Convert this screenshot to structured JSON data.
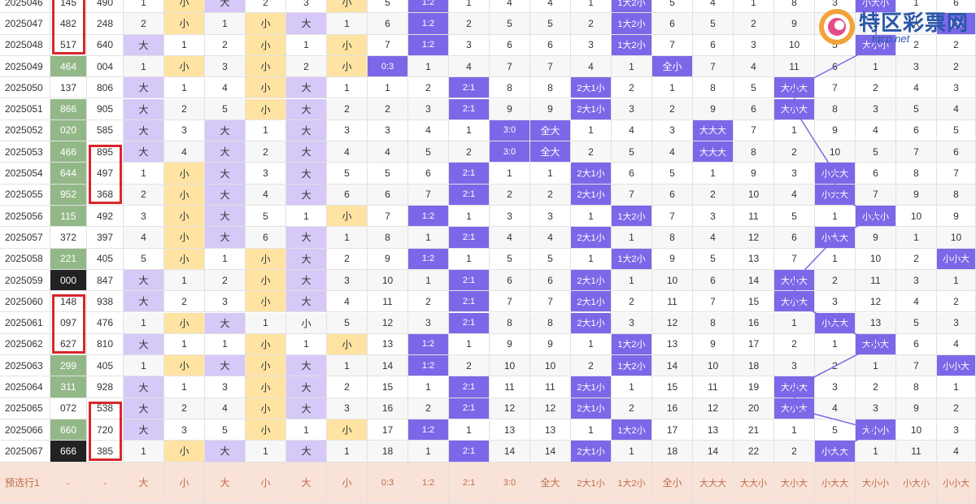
{
  "logo": {
    "title": "特区彩票网",
    "url": "tqcp.net"
  },
  "footer": {
    "label": "预选行1",
    "values": [
      "-",
      "-",
      "大",
      "小",
      "大",
      "小",
      "大",
      "小",
      "0:3",
      "1:2",
      "2:1",
      "3:0",
      "全大",
      "2大1小",
      "1大2小",
      "全小",
      "大大大",
      "大大小",
      "大小大",
      "小大大",
      "大小小",
      "小大小",
      "小小大"
    ]
  },
  "colors": {
    "green": "#93b888",
    "purple": "#7b68e8",
    "lavender": "#d6c8f7",
    "yellow": "#ffe3a3",
    "red": "#d9262b",
    "black": "#222222",
    "footer": "#f9e3d8"
  },
  "rows": [
    {
      "issue": "2025046",
      "a": "145",
      "b": "490",
      "c": [
        "1",
        "小",
        "大",
        "2",
        "3",
        "小",
        "5",
        "1:2",
        "1",
        "4",
        "4",
        "1",
        "1大2小",
        "5",
        "4",
        "1",
        "8",
        "3",
        "小大小",
        "1"
      ]
    },
    {
      "issue": "2025047",
      "a": "482",
      "b": "248",
      "c": [
        "2",
        "小",
        "1",
        "小",
        "大",
        "1",
        "6",
        "1:2",
        "2",
        "5",
        "5",
        "2",
        "1大2小",
        "6",
        "5",
        "2",
        "9",
        "4",
        "1",
        "大"
      ]
    },
    {
      "issue": "2025048",
      "a": "517",
      "b": "640",
      "c": [
        "大",
        "1",
        "2",
        "小",
        "1",
        "小",
        "7",
        "1:2",
        "3",
        "6",
        "6",
        "3",
        "1大2小",
        "7",
        "6",
        "3",
        "10",
        "5",
        "大小小",
        "2"
      ]
    },
    {
      "issue": "2025049",
      "a": "464",
      "b": "004",
      "c": [
        "1",
        "小",
        "3",
        "小",
        "2",
        "小",
        "0:3",
        "1",
        "4",
        "7",
        "7",
        "4",
        "1",
        "全小",
        "7",
        "4",
        "11",
        "6",
        "1",
        "3"
      ]
    },
    {
      "issue": "2025050",
      "a": "137",
      "b": "806",
      "c": [
        "大",
        "1",
        "4",
        "小",
        "大",
        "1",
        "1",
        "2",
        "2:1",
        "8",
        "8",
        "2大1小",
        "2",
        "1",
        "8",
        "5",
        "大小大",
        "7",
        "2",
        "4"
      ]
    },
    {
      "issue": "2025051",
      "a": "866",
      "b": "905",
      "c": [
        "大",
        "2",
        "5",
        "小",
        "大",
        "2",
        "2",
        "3",
        "2:1",
        "9",
        "9",
        "2大1小",
        "3",
        "2",
        "9",
        "6",
        "大小大",
        "8",
        "3",
        "5"
      ]
    },
    {
      "issue": "2025052",
      "a": "020",
      "b": "585",
      "c": [
        "大",
        "3",
        "大",
        "1",
        "大",
        "3",
        "3",
        "4",
        "1",
        "3:0",
        "全大",
        "1",
        "4",
        "3",
        "大大大",
        "7",
        "1",
        "9",
        "4",
        "6"
      ]
    },
    {
      "issue": "2025053",
      "a": "466",
      "b": "895",
      "c": [
        "大",
        "4",
        "大",
        "2",
        "大",
        "4",
        "4",
        "5",
        "2",
        "3:0",
        "全大",
        "2",
        "5",
        "4",
        "大大大",
        "8",
        "2",
        "10",
        "5",
        "7"
      ]
    },
    {
      "issue": "2025054",
      "a": "644",
      "b": "497",
      "c": [
        "1",
        "小",
        "大",
        "3",
        "大",
        "5",
        "5",
        "6",
        "2:1",
        "1",
        "1",
        "2大1小",
        "6",
        "5",
        "1",
        "9",
        "3",
        "小大大",
        "6",
        "8"
      ]
    },
    {
      "issue": "2025055",
      "a": "952",
      "b": "368",
      "c": [
        "2",
        "小",
        "大",
        "4",
        "大",
        "6",
        "6",
        "7",
        "2:1",
        "2",
        "2",
        "2大1小",
        "7",
        "6",
        "2",
        "10",
        "4",
        "小大大",
        "7",
        "9"
      ]
    },
    {
      "issue": "2025056",
      "a": "115",
      "b": "492",
      "c": [
        "3",
        "小",
        "大",
        "5",
        "1",
        "小",
        "7",
        "1:2",
        "1",
        "3",
        "3",
        "1",
        "1大2小",
        "7",
        "3",
        "11",
        "5",
        "1",
        "小大小",
        "10"
      ]
    },
    {
      "issue": "2025057",
      "a": "372",
      "b": "397",
      "c": [
        "4",
        "小",
        "大",
        "6",
        "大",
        "1",
        "8",
        "1",
        "2:1",
        "4",
        "4",
        "2大1小",
        "1",
        "8",
        "4",
        "12",
        "6",
        "小大大",
        "9",
        "1"
      ]
    },
    {
      "issue": "2025058",
      "a": "221",
      "b": "405",
      "c": [
        "5",
        "小",
        "1",
        "小",
        "大",
        "2",
        "9",
        "1:2",
        "1",
        "5",
        "5",
        "1",
        "1大2小",
        "9",
        "5",
        "13",
        "7",
        "1",
        "10",
        "2"
      ]
    },
    {
      "issue": "2025059",
      "a": "000",
      "b": "847",
      "c": [
        "大",
        "1",
        "2",
        "小",
        "大",
        "3",
        "10",
        "1",
        "2:1",
        "6",
        "6",
        "2大1小",
        "1",
        "10",
        "6",
        "14",
        "大小大",
        "2",
        "11",
        "3"
      ]
    },
    {
      "issue": "2025060",
      "a": "148",
      "b": "938",
      "c": [
        "大",
        "2",
        "3",
        "小",
        "大",
        "4",
        "11",
        "2",
        "2:1",
        "7",
        "7",
        "2大1小",
        "2",
        "11",
        "7",
        "15",
        "大小大",
        "3",
        "12",
        "4"
      ]
    },
    {
      "issue": "2025061",
      "a": "097",
      "b": "476",
      "c": [
        "1",
        "小",
        "大",
        "1",
        "小",
        "5",
        "12",
        "3",
        "2:1",
        "8",
        "8",
        "2大1小",
        "3",
        "12",
        "8",
        "16",
        "1",
        "小大大",
        "13",
        "5"
      ]
    },
    {
      "issue": "2025062",
      "a": "627",
      "b": "810",
      "c": [
        "大",
        "1",
        "1",
        "小",
        "1",
        "小",
        "13",
        "1:2",
        "1",
        "9",
        "9",
        "1",
        "1大2小",
        "13",
        "9",
        "17",
        "2",
        "1",
        "大小大",
        "6"
      ]
    },
    {
      "issue": "2025063",
      "a": "299",
      "b": "405",
      "c": [
        "1",
        "小",
        "大",
        "小",
        "大",
        "1",
        "14",
        "1:2",
        "2",
        "10",
        "10",
        "2",
        "1大2小",
        "14",
        "10",
        "18",
        "3",
        "2",
        "1",
        "7"
      ]
    },
    {
      "issue": "2025064",
      "a": "311",
      "b": "928",
      "c": [
        "大",
        "1",
        "3",
        "小",
        "大",
        "2",
        "15",
        "1",
        "2:1",
        "11",
        "11",
        "2大1小",
        "1",
        "15",
        "11",
        "19",
        "大小大",
        "3",
        "2",
        "8"
      ]
    },
    {
      "issue": "2025065",
      "a": "072",
      "b": "538",
      "c": [
        "大",
        "2",
        "4",
        "小",
        "大",
        "3",
        "16",
        "2",
        "2:1",
        "12",
        "12",
        "2大1小",
        "2",
        "16",
        "12",
        "20",
        "大小大",
        "4",
        "3",
        "9"
      ]
    },
    {
      "issue": "2025066",
      "a": "660",
      "b": "720",
      "c": [
        "大",
        "3",
        "5",
        "小",
        "1",
        "小",
        "17",
        "1:2",
        "1",
        "13",
        "13",
        "1",
        "1大2小",
        "17",
        "13",
        "21",
        "1",
        "5",
        "大小小",
        "10"
      ]
    },
    {
      "issue": "2025067",
      "a": "666",
      "b": "385",
      "c": [
        "1",
        "小",
        "大",
        "1",
        "大",
        "1",
        "18",
        "1",
        "2:1",
        "14",
        "14",
        "2大1小",
        "1",
        "18",
        "14",
        "22",
        "2",
        "小大大",
        "1",
        "11"
      ]
    }
  ],
  "last_col": [
    "6",
    "1大",
    "2",
    "2",
    "3",
    "4",
    "5",
    "6",
    "7",
    "8",
    "9",
    "10",
    "小小大",
    "1",
    "2",
    "3",
    "4",
    "小小大",
    "1",
    "2",
    "3",
    "4"
  ]
}
